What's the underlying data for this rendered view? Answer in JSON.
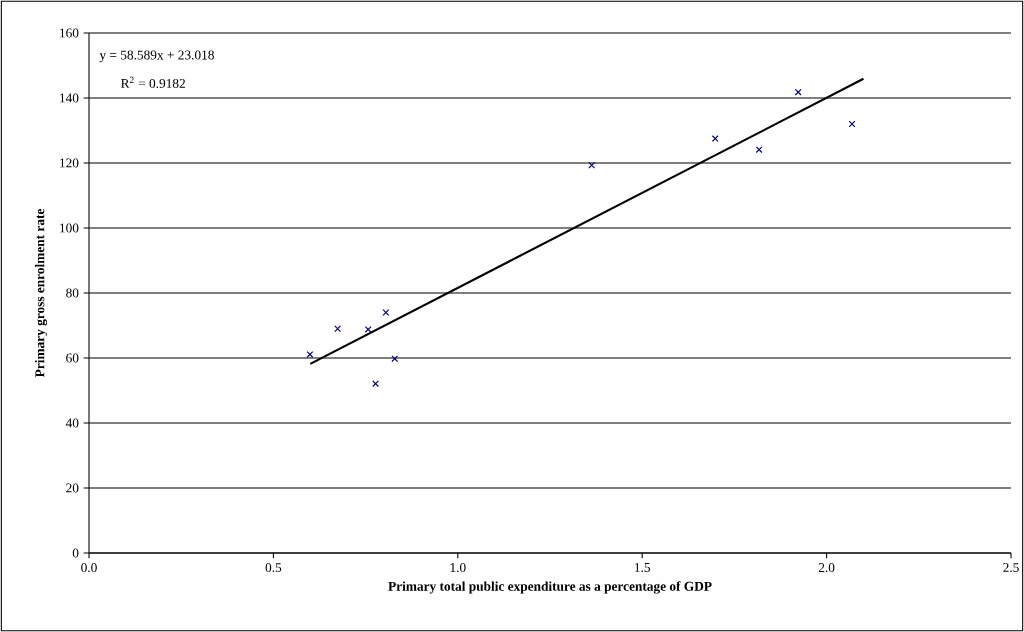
{
  "chart_data": {
    "type": "scatter",
    "xlabel": "Primary total public expenditure as a percentage of GDP",
    "ylabel": "Primary gross enrolment rate",
    "series": [
      {
        "color": "#000080",
        "marker": "cross",
        "x": [
          0.599,
          0.674,
          0.757,
          0.805,
          0.777,
          0.829,
          1.363,
          1.698,
          1.817,
          1.923,
          2.069
        ],
        "values": [
          61.1,
          69.0,
          68.8,
          74.0,
          52.1,
          59.8,
          119.3,
          127.5,
          124.1,
          141.8,
          132.0
        ]
      },
      {
        "type": "line",
        "color": "#000000",
        "marker": "none",
        "line_style": "solid",
        "x": [
          0.6,
          2.1
        ],
        "values": [
          58.2,
          145.9
        ]
      }
    ],
    "xlim": [
      0,
      2.5
    ],
    "ylim": [
      0,
      160
    ],
    "xticks": [
      {
        "value": 0,
        "label": "0.0"
      },
      0.5,
      {
        "value": 1,
        "label": "1.0"
      },
      1.5,
      {
        "value": 2,
        "label": "2.0"
      },
      2.5
    ],
    "yticks": [
      0,
      20,
      40,
      60,
      80,
      100,
      120,
      140,
      160
    ],
    "grid": "y",
    "annotations": [
      "y = 58.589x + 23.018",
      "R$^{2}$ = 0.9182"
    ]
  }
}
